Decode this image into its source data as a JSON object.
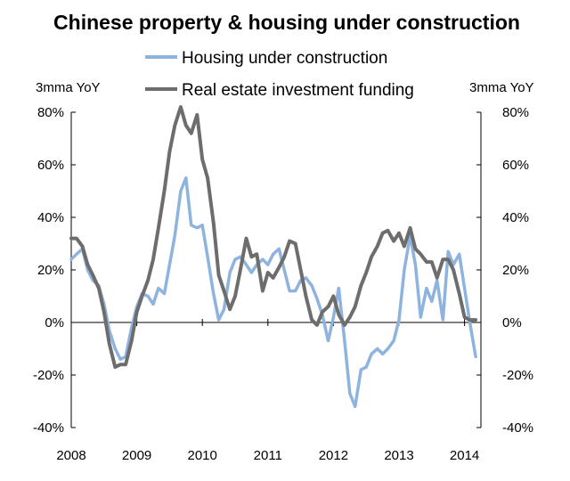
{
  "chart_data": {
    "type": "line",
    "title": "Chinese property & housing under construction",
    "y_left_unit": "3mma YoY",
    "y_right_unit": "3mma YoY",
    "ylim": [
      -40,
      80
    ],
    "y_ticks": [
      -40,
      -20,
      0,
      20,
      40,
      60,
      80
    ],
    "y_tick_labels": [
      "-40%",
      "-20%",
      "0%",
      "20%",
      "40%",
      "60%",
      "80%"
    ],
    "xlim": [
      2008,
      2014.25
    ],
    "x_ticks": [
      2008,
      2009,
      2010,
      2011,
      2012,
      2013,
      2014
    ],
    "x_tick_labels": [
      "2008",
      "2009",
      "2010",
      "2011",
      "2012",
      "2013",
      "2014"
    ],
    "legend_position": "top-center",
    "colors": {
      "housing": "#8fb3df",
      "funding": "#6d6d6d"
    },
    "series": [
      {
        "name": "Housing under construction",
        "x": [
          2008.0,
          2008.08,
          2008.17,
          2008.25,
          2008.33,
          2008.42,
          2008.5,
          2008.58,
          2008.67,
          2008.75,
          2008.83,
          2008.92,
          2009.0,
          2009.08,
          2009.17,
          2009.25,
          2009.33,
          2009.42,
          2009.5,
          2009.58,
          2009.67,
          2009.75,
          2009.83,
          2009.92,
          2010.0,
          2010.08,
          2010.17,
          2010.25,
          2010.33,
          2010.42,
          2010.5,
          2010.58,
          2010.67,
          2010.75,
          2010.83,
          2010.92,
          2011.0,
          2011.08,
          2011.17,
          2011.25,
          2011.33,
          2011.42,
          2011.5,
          2011.58,
          2011.67,
          2011.75,
          2011.83,
          2011.92,
          2012.0,
          2012.08,
          2012.17,
          2012.25,
          2012.33,
          2012.42,
          2012.5,
          2012.58,
          2012.67,
          2012.75,
          2012.83,
          2012.92,
          2013.0,
          2013.08,
          2013.17,
          2013.25,
          2013.33,
          2013.42,
          2013.5,
          2013.58,
          2013.67,
          2013.75,
          2013.83,
          2013.92,
          2014.0,
          2014.08,
          2014.17
        ],
        "values": [
          24,
          26,
          28,
          20,
          16,
          14,
          7,
          -3,
          -10,
          -14,
          -13,
          -2,
          6,
          11,
          10,
          7,
          13,
          11,
          22,
          33,
          50,
          55,
          37,
          36,
          37,
          25,
          11,
          1,
          5,
          19,
          24,
          25,
          22,
          19,
          22,
          24,
          22,
          26,
          28,
          20,
          12,
          12,
          16,
          17,
          14,
          9,
          3,
          -7,
          2,
          13,
          -7,
          -27,
          -32,
          -18,
          -17,
          -12,
          -10,
          -12,
          -10,
          -7,
          1,
          20,
          33,
          22,
          2,
          13,
          8,
          16,
          1,
          27,
          22,
          26,
          13,
          0,
          -13
        ]
      },
      {
        "name": "Real estate investment funding",
        "x": [
          2008.0,
          2008.08,
          2008.17,
          2008.25,
          2008.33,
          2008.42,
          2008.5,
          2008.58,
          2008.67,
          2008.75,
          2008.83,
          2008.92,
          2009.0,
          2009.08,
          2009.17,
          2009.25,
          2009.33,
          2009.42,
          2009.5,
          2009.58,
          2009.67,
          2009.75,
          2009.83,
          2009.92,
          2010.0,
          2010.08,
          2010.17,
          2010.25,
          2010.33,
          2010.42,
          2010.5,
          2010.58,
          2010.67,
          2010.75,
          2010.83,
          2010.92,
          2011.0,
          2011.08,
          2011.17,
          2011.25,
          2011.33,
          2011.42,
          2011.5,
          2011.58,
          2011.67,
          2011.75,
          2011.83,
          2011.92,
          2012.0,
          2012.08,
          2012.17,
          2012.25,
          2012.33,
          2012.42,
          2012.5,
          2012.58,
          2012.67,
          2012.75,
          2012.83,
          2012.92,
          2013.0,
          2013.08,
          2013.17,
          2013.25,
          2013.33,
          2013.42,
          2013.5,
          2013.58,
          2013.67,
          2013.75,
          2013.83,
          2013.92,
          2014.0,
          2014.08,
          2014.17
        ],
        "values": [
          32,
          32,
          29,
          22,
          18,
          13,
          4,
          -8,
          -17,
          -16,
          -16,
          -7,
          4,
          10,
          16,
          24,
          36,
          50,
          65,
          75,
          82,
          75,
          72,
          79,
          62,
          55,
          38,
          18,
          12,
          5,
          10,
          20,
          32,
          25,
          26,
          12,
          19,
          17,
          21,
          25,
          31,
          30,
          20,
          10,
          1,
          -1,
          4,
          6,
          10,
          3,
          -1,
          2,
          6,
          14,
          19,
          25,
          29,
          34,
          35,
          31,
          34,
          29,
          36,
          28,
          26,
          23,
          23,
          17,
          24,
          24,
          20,
          11,
          2,
          1,
          1
        ]
      }
    ]
  }
}
